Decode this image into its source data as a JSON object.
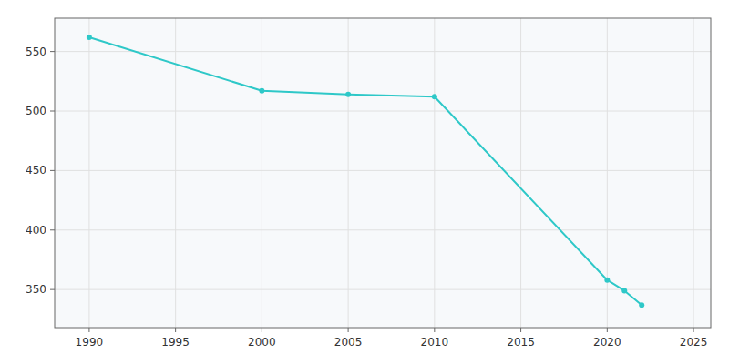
{
  "chart_data": {
    "type": "line",
    "x": [
      1990,
      2000,
      2005,
      2010,
      2020,
      2021,
      2022
    ],
    "values": [
      562,
      517,
      514,
      512,
      358,
      349,
      337
    ],
    "color": "#2ec8c8",
    "marker": "circle",
    "xlim": [
      1988,
      2026
    ],
    "ylim": [
      318,
      578
    ],
    "xticks": [
      1990,
      1995,
      2000,
      2005,
      2010,
      2015,
      2020,
      2025
    ],
    "yticks": [
      350,
      400,
      450,
      500,
      550
    ],
    "grid": true
  }
}
